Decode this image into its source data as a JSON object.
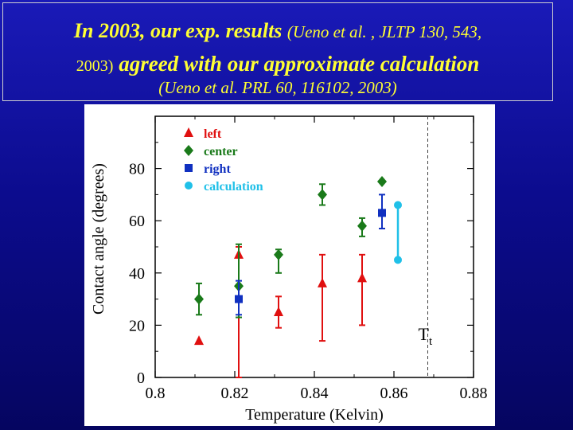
{
  "header": {
    "line1_main": "In 2003, our exp. results",
    "line1_ref": "(Ueno et al. , JLTP 130, 543,",
    "line2_ref": "2003)",
    "line2_main": "agreed with our approximate calculation",
    "line3": "(Ueno et al. PRL 60, 116102, 2003)"
  },
  "colors": {
    "title": "#ffff33",
    "left": "#e01010",
    "center": "#1a7a1a",
    "right": "#1030c0",
    "calculation": "#20c0e8"
  },
  "chart_data": {
    "type": "scatter",
    "xlabel": "Temperature  (Kelvin)",
    "ylabel": "Contact angle  (degrees)",
    "xlim": [
      0.8,
      0.88
    ],
    "ylim": [
      0,
      100
    ],
    "x_ticks": [
      "0.8",
      "0.82",
      "0.84",
      "0.86",
      "0.88"
    ],
    "y_ticks": [
      "0",
      "20",
      "40",
      "60",
      "80"
    ],
    "legend_position": "top-left",
    "annotation": {
      "text": "T",
      "sub": "t",
      "x": 0.8685
    },
    "series": [
      {
        "name": "left",
        "marker": "triangle",
        "points": [
          {
            "x": 0.811,
            "y": 14,
            "lo": 0,
            "hi": 0
          },
          {
            "x": 0.821,
            "y": 47,
            "lo": 0,
            "hi": 50
          },
          {
            "x": 0.831,
            "y": 25,
            "lo": 19,
            "hi": 31
          },
          {
            "x": 0.842,
            "y": 36,
            "lo": 14,
            "hi": 47
          },
          {
            "x": 0.852,
            "y": 38,
            "lo": 20,
            "hi": 47
          }
        ]
      },
      {
        "name": "center",
        "marker": "diamond",
        "points": [
          {
            "x": 0.811,
            "y": 30,
            "lo": 24,
            "hi": 36
          },
          {
            "x": 0.821,
            "y": 35,
            "lo": 23,
            "hi": 51
          },
          {
            "x": 0.831,
            "y": 47,
            "lo": 40,
            "hi": 49
          },
          {
            "x": 0.842,
            "y": 70,
            "lo": 66,
            "hi": 74
          },
          {
            "x": 0.852,
            "y": 58,
            "lo": 54,
            "hi": 61
          },
          {
            "x": 0.857,
            "y": 75,
            "lo": 75,
            "hi": 75
          }
        ]
      },
      {
        "name": "right",
        "marker": "square",
        "points": [
          {
            "x": 0.821,
            "y": 30,
            "lo": 24,
            "hi": 37
          },
          {
            "x": 0.857,
            "y": 63,
            "lo": 57,
            "hi": 70
          }
        ]
      },
      {
        "name": "calculation",
        "marker": "circle",
        "points": [
          {
            "x": 0.861,
            "y": 66
          },
          {
            "x": 0.861,
            "y": 45
          }
        ],
        "connect": true
      }
    ]
  }
}
